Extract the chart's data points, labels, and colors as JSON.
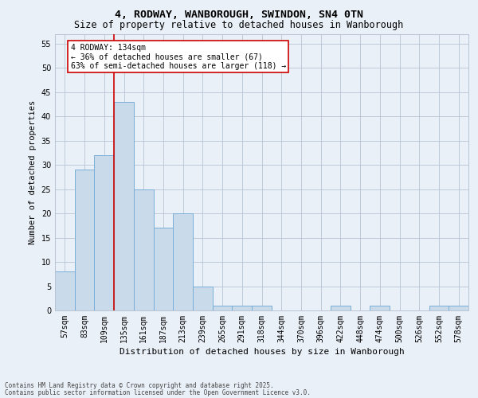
{
  "title_line1": "4, RODWAY, WANBOROUGH, SWINDON, SN4 0TN",
  "title_line2": "Size of property relative to detached houses in Wanborough",
  "xlabel": "Distribution of detached houses by size in Wanborough",
  "ylabel": "Number of detached properties",
  "categories": [
    "57sqm",
    "83sqm",
    "109sqm",
    "135sqm",
    "161sqm",
    "187sqm",
    "213sqm",
    "239sqm",
    "265sqm",
    "291sqm",
    "318sqm",
    "344sqm",
    "370sqm",
    "396sqm",
    "422sqm",
    "448sqm",
    "474sqm",
    "500sqm",
    "526sqm",
    "552sqm",
    "578sqm"
  ],
  "values": [
    8,
    29,
    32,
    43,
    25,
    17,
    20,
    5,
    1,
    1,
    1,
    0,
    0,
    0,
    1,
    0,
    1,
    0,
    0,
    1,
    1
  ],
  "bar_color": "#c9daea",
  "bar_edgecolor": "#7aaed6",
  "line_x_index": 3,
  "line_color": "#cc0000",
  "annotation_text": "4 RODWAY: 134sqm\n← 36% of detached houses are smaller (67)\n63% of semi-detached houses are larger (118) →",
  "annotation_box_color": "#ffffff",
  "annotation_box_edgecolor": "#cc0000",
  "ylim": [
    0,
    57
  ],
  "yticks": [
    0,
    5,
    10,
    15,
    20,
    25,
    30,
    35,
    40,
    45,
    50,
    55
  ],
  "footer_line1": "Contains HM Land Registry data © Crown copyright and database right 2025.",
  "footer_line2": "Contains public sector information licensed under the Open Government Licence v3.0.",
  "bg_color": "#eaf0f8",
  "plot_bg_color": "#eaf0f8",
  "title1_fontsize": 9.5,
  "title2_fontsize": 8.5,
  "ylabel_fontsize": 7.5,
  "xlabel_fontsize": 8,
  "tick_fontsize": 7,
  "annot_fontsize": 7,
  "footer_fontsize": 5.5
}
